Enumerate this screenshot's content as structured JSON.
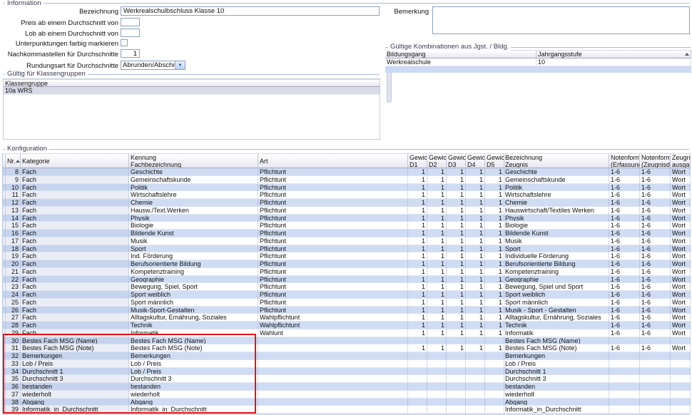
{
  "colors": {
    "row_blue": "#cfdcf4",
    "row_blue_left": "#c7d4ed",
    "selected_gray": "#d9dce8",
    "highlight_red": "#e51414",
    "groupline_blue": "#aebcd8"
  },
  "information": {
    "group_label": "Information",
    "bezeichnung_label": "Bezeichnung",
    "bezeichnung_value": "Werkrealschulbschluss Klasse 10",
    "preis_label": "Preis ab einem Durchschnitt von",
    "preis_value": "",
    "lob_label": "Lob ab einem Durchschnitt von",
    "lob_value": "",
    "unterpunktungen_label": "Unterpunktungen farbig markieren",
    "unterpunktungen_checked": false,
    "nachkommastellen_label": "Nachkommastellen für Durchschnitte",
    "nachkommastellen_value": "1",
    "rundungsart_label": "Rundungsart für Durchschnitte",
    "rundungsart_value": "Abrunden/Abschneiden",
    "bemerkung_label": "Bemerkung",
    "bemerkung_value": ""
  },
  "kombinationen": {
    "group_label": "Gültige Kombinationen aus Jgst. / Bldg.",
    "columns": [
      "Bildungsgang",
      "Jahrgangsstufe"
    ],
    "rows": [
      [
        "Werkrealschule",
        "10"
      ]
    ]
  },
  "klassengruppen": {
    "group_label": "Gültig für Klassengruppen",
    "column": "Klassengruppe",
    "rows": [
      "10a WRS"
    ]
  },
  "konfiguration": {
    "group_label": "Konfiguration",
    "headers": {
      "nr": [
        "Nr."
      ],
      "kategorie": [
        "Kategorie"
      ],
      "kennung": [
        "Kennung",
        "Fachbezeichnung"
      ],
      "art": [
        "Art"
      ],
      "d1": [
        "Gewicht",
        "D1"
      ],
      "d2": [
        "Gewicht",
        "D2"
      ],
      "d3": [
        "Gewicht",
        "D3"
      ],
      "d4": [
        "Gewicht",
        "D4"
      ],
      "d5": [
        "Gewicht",
        "D5"
      ],
      "bezeichnung": [
        "Bezeichnung",
        "Zeugnis"
      ],
      "nf_erfassung": [
        "Notenformat",
        "(Erfassung)"
      ],
      "nf_zeugnisdruck": [
        "Notenformat",
        "(Zeugnisdruck)"
      ],
      "ausgabe": [
        "Zeugnis-",
        "ausgabe"
      ]
    },
    "row_keys": [
      "sel",
      "nr",
      "kategorie",
      "kennung",
      "art",
      "d1",
      "d2",
      "d3",
      "d4",
      "d5",
      "bezeichnung",
      "nf_erfassung",
      "nf_zeugnisdruck",
      "ausgabe"
    ],
    "rows": [
      {
        "nr": "8",
        "kategorie": "Fach",
        "kennung": "Geschichte",
        "art": "Pflichtunt",
        "d1": "1",
        "d2": "1",
        "d3": "1",
        "d4": "1",
        "d5": "1",
        "bezeichnung": "Geschichte",
        "nf_erfassung": "1-6",
        "nf_zeugnisdruck": "1-6",
        "ausgabe": "Wort"
      },
      {
        "nr": "9",
        "kategorie": "Fach",
        "kennung": "Gemeinschaftskunde",
        "art": "Pflichtunt",
        "d1": "1",
        "d2": "1",
        "d3": "1",
        "d4": "1",
        "d5": "1",
        "bezeichnung": "Gemeinschaftskunde",
        "nf_erfassung": "1-6",
        "nf_zeugnisdruck": "1-6",
        "ausgabe": "Wort"
      },
      {
        "nr": "10",
        "kategorie": "Fach",
        "kennung": "Politik",
        "art": "Pflichtunt",
        "d1": "1",
        "d2": "1",
        "d3": "1",
        "d4": "1",
        "d5": "1",
        "bezeichnung": "Politik",
        "nf_erfassung": "1-6",
        "nf_zeugnisdruck": "1-6",
        "ausgabe": "Wort"
      },
      {
        "nr": "11",
        "kategorie": "Fach",
        "kennung": "Wirtschaftslehre",
        "art": "Pflichtunt",
        "d1": "1",
        "d2": "1",
        "d3": "1",
        "d4": "1",
        "d5": "1",
        "bezeichnung": "Wirtschaftslehre",
        "nf_erfassung": "1-6",
        "nf_zeugnisdruck": "1-6",
        "ausgabe": "Wort"
      },
      {
        "nr": "12",
        "kategorie": "Fach",
        "kennung": "Chemie",
        "art": "Pflichtunt",
        "d1": "1",
        "d2": "1",
        "d3": "1",
        "d4": "1",
        "d5": "1",
        "bezeichnung": "Chemie",
        "nf_erfassung": "1-6",
        "nf_zeugnisdruck": "1-6",
        "ausgabe": "Wort"
      },
      {
        "nr": "13",
        "kategorie": "Fach",
        "kennung": "Hausw./Text.Werken",
        "art": "Pflichtunt",
        "d1": "1",
        "d2": "1",
        "d3": "1",
        "d4": "1",
        "d5": "1",
        "bezeichnung": "Hauswirtschaft/Textiles Werken",
        "nf_erfassung": "1-6",
        "nf_zeugnisdruck": "1-6",
        "ausgabe": "Wort"
      },
      {
        "nr": "14",
        "kategorie": "Fach",
        "kennung": "Physik",
        "art": "Pflichtunt",
        "d1": "1",
        "d2": "1",
        "d3": "1",
        "d4": "1",
        "d5": "1",
        "bezeichnung": "Physik",
        "nf_erfassung": "1-6",
        "nf_zeugnisdruck": "1-6",
        "ausgabe": "Wort"
      },
      {
        "nr": "15",
        "kategorie": "Fach",
        "kennung": "Biologie",
        "art": "Pflichtunt",
        "d1": "1",
        "d2": "1",
        "d3": "1",
        "d4": "1",
        "d5": "1",
        "bezeichnung": "Biologie",
        "nf_erfassung": "1-6",
        "nf_zeugnisdruck": "1-6",
        "ausgabe": "Wort"
      },
      {
        "nr": "16",
        "kategorie": "Fach",
        "kennung": "Bildende Kunst",
        "art": "Pflichtunt",
        "d1": "1",
        "d2": "1",
        "d3": "1",
        "d4": "1",
        "d5": "1",
        "bezeichnung": "Bildende Kunst",
        "nf_erfassung": "1-6",
        "nf_zeugnisdruck": "1-6",
        "ausgabe": "Wort"
      },
      {
        "nr": "17",
        "kategorie": "Fach",
        "kennung": "Musik",
        "art": "Pflichtunt",
        "d1": "1",
        "d2": "1",
        "d3": "1",
        "d4": "1",
        "d5": "1",
        "bezeichnung": "Musik",
        "nf_erfassung": "1-6",
        "nf_zeugnisdruck": "1-6",
        "ausgabe": "Wort"
      },
      {
        "nr": "18",
        "kategorie": "Fach",
        "kennung": "Sport",
        "art": "Pflichtunt",
        "d1": "1",
        "d2": "1",
        "d3": "1",
        "d4": "1",
        "d5": "1",
        "bezeichnung": "Sport",
        "nf_erfassung": "1-6",
        "nf_zeugnisdruck": "1-6",
        "ausgabe": "Wort"
      },
      {
        "nr": "19",
        "kategorie": "Fach",
        "kennung": "Ind. Förderung",
        "art": "Pflichtunt",
        "d1": "1",
        "d2": "1",
        "d3": "1",
        "d4": "1",
        "d5": "1",
        "bezeichnung": "Individuelle Förderung",
        "nf_erfassung": "1-6",
        "nf_zeugnisdruck": "1-6",
        "ausgabe": "Wort"
      },
      {
        "nr": "20",
        "kategorie": "Fach",
        "kennung": "Berufsorientierte Bildung",
        "art": "Pflichtunt",
        "d1": "1",
        "d2": "1",
        "d3": "1",
        "d4": "1",
        "d5": "1",
        "bezeichnung": "Berufsorientierte Bildung",
        "nf_erfassung": "1-6",
        "nf_zeugnisdruck": "1-6",
        "ausgabe": "Wort"
      },
      {
        "nr": "21",
        "kategorie": "Fach",
        "kennung": "Kompetenztraining",
        "art": "Pflichtunt",
        "d1": "1",
        "d2": "1",
        "d3": "1",
        "d4": "1",
        "d5": "1",
        "bezeichnung": "Kompetenztraining",
        "nf_erfassung": "1-6",
        "nf_zeugnisdruck": "1-6",
        "ausgabe": "Wort"
      },
      {
        "nr": "22",
        "kategorie": "Fach",
        "kennung": "Geographie",
        "art": "Pflichtunt",
        "d1": "1",
        "d2": "1",
        "d3": "1",
        "d4": "1",
        "d5": "1",
        "bezeichnung": "Geographie",
        "nf_erfassung": "1-6",
        "nf_zeugnisdruck": "1-6",
        "ausgabe": "Wort"
      },
      {
        "nr": "23",
        "kategorie": "Fach",
        "kennung": "Bewegung, Spiel, Sport",
        "art": "Pflichtunt",
        "d1": "1",
        "d2": "1",
        "d3": "1",
        "d4": "1",
        "d5": "1",
        "bezeichnung": "Bewegung, Spiel und Sport",
        "nf_erfassung": "1-6",
        "nf_zeugnisdruck": "1-6",
        "ausgabe": "Wort"
      },
      {
        "nr": "24",
        "kategorie": "Fach",
        "kennung": "Sport weiblich",
        "art": "Pflichtunt",
        "d1": "1",
        "d2": "1",
        "d3": "1",
        "d4": "1",
        "d5": "1",
        "bezeichnung": "Sport weiblich",
        "nf_erfassung": "1-6",
        "nf_zeugnisdruck": "1-6",
        "ausgabe": "Wort"
      },
      {
        "nr": "25",
        "kategorie": "Fach",
        "kennung": "Sport männlich",
        "art": "Pflichtunt",
        "d1": "1",
        "d2": "1",
        "d3": "1",
        "d4": "1",
        "d5": "1",
        "bezeichnung": "Sport männlich",
        "nf_erfassung": "1-6",
        "nf_zeugnisdruck": "1-6",
        "ausgabe": "Wort"
      },
      {
        "nr": "26",
        "kategorie": "Fach",
        "kennung": "Musik-Sport-Gestalten",
        "art": "Pflichtunt",
        "d1": "1",
        "d2": "1",
        "d3": "1",
        "d4": "1",
        "d5": "1",
        "bezeichnung": "Musik - Sport - Gestalten",
        "nf_erfassung": "1-6",
        "nf_zeugnisdruck": "1-6",
        "ausgabe": "Wort"
      },
      {
        "nr": "27",
        "kategorie": "Fach",
        "kennung": "Alltagskultur, Ernährung, Soziales",
        "art": "Wahlpflichtunt",
        "d1": "1",
        "d2": "1",
        "d3": "1",
        "d4": "1",
        "d5": "1",
        "bezeichnung": "Alltagskultur, Ernährung, Soziales",
        "nf_erfassung": "1-6",
        "nf_zeugnisdruck": "1-6",
        "ausgabe": "Wort"
      },
      {
        "nr": "28",
        "kategorie": "Fach",
        "kennung": "Technik",
        "art": "Wahlpflichtunt",
        "d1": "1",
        "d2": "1",
        "d3": "1",
        "d4": "1",
        "d5": "1",
        "bezeichnung": "Technik",
        "nf_erfassung": "1-6",
        "nf_zeugnisdruck": "1-6",
        "ausgabe": "Wort"
      },
      {
        "nr": "29",
        "kategorie": "Fach",
        "kennung": "Informatik",
        "art": "Wahlunt",
        "d1": "1",
        "d2": "1",
        "d3": "1",
        "d4": "1",
        "d5": "1",
        "bezeichnung": "Informatik",
        "nf_erfassung": "1-6",
        "nf_zeugnisdruck": "1-6",
        "ausgabe": "Wort"
      },
      {
        "nr": "30",
        "kategorie": "Bestes Fach MSG (Name)",
        "kennung": "Bestes Fach MSG (Name)",
        "art": "",
        "d1": "",
        "d2": "",
        "d3": "",
        "d4": "",
        "d5": "",
        "bezeichnung": "Bestes Fach MSG (Name)",
        "nf_erfassung": "",
        "nf_zeugnisdruck": "",
        "ausgabe": ""
      },
      {
        "nr": "31",
        "kategorie": "Bestes Fach MSG (Note)",
        "kennung": "Bestes Fach MSG (Note)",
        "art": "",
        "d1": "1",
        "d2": "1",
        "d3": "1",
        "d4": "1",
        "d5": "1",
        "bezeichnung": "Bestes Fach MSG (Note)",
        "nf_erfassung": "1-6",
        "nf_zeugnisdruck": "1-6",
        "ausgabe": "Wort"
      },
      {
        "nr": "32",
        "kategorie": "Bemerkungen",
        "kennung": "Bemerkungen",
        "art": "",
        "d1": "",
        "d2": "",
        "d3": "",
        "d4": "",
        "d5": "",
        "bezeichnung": "Bemerkungen",
        "nf_erfassung": "",
        "nf_zeugnisdruck": "",
        "ausgabe": ""
      },
      {
        "nr": "33",
        "kategorie": "Lob / Preis",
        "kennung": "Lob / Preis",
        "art": "",
        "d1": "",
        "d2": "",
        "d3": "",
        "d4": "",
        "d5": "",
        "bezeichnung": "Lob / Preis",
        "nf_erfassung": "",
        "nf_zeugnisdruck": "",
        "ausgabe": ""
      },
      {
        "nr": "34",
        "kategorie": "Durchschnitt 1",
        "kennung": "Lob / Preis",
        "art": "",
        "d1": "",
        "d2": "",
        "d3": "",
        "d4": "",
        "d5": "",
        "bezeichnung": "Durchschnitt 1",
        "nf_erfassung": "",
        "nf_zeugnisdruck": "",
        "ausgabe": ""
      },
      {
        "nr": "35",
        "kategorie": "Durchschnitt 3",
        "kennung": "Durchschnitt 3",
        "art": "",
        "d1": "",
        "d2": "",
        "d3": "",
        "d4": "",
        "d5": "",
        "bezeichnung": "Durchschnitt 3",
        "nf_erfassung": "",
        "nf_zeugnisdruck": "",
        "ausgabe": ""
      },
      {
        "nr": "36",
        "kategorie": "bestanden",
        "kennung": "bestanden",
        "art": "",
        "d1": "",
        "d2": "",
        "d3": "",
        "d4": "",
        "d5": "",
        "bezeichnung": "bestanden",
        "nf_erfassung": "",
        "nf_zeugnisdruck": "",
        "ausgabe": ""
      },
      {
        "nr": "37",
        "kategorie": "wiederholt",
        "kennung": "wiederholt",
        "art": "",
        "d1": "",
        "d2": "",
        "d3": "",
        "d4": "",
        "d5": "",
        "bezeichnung": "wiederholt",
        "nf_erfassung": "",
        "nf_zeugnisdruck": "",
        "ausgabe": ""
      },
      {
        "nr": "38",
        "kategorie": "Abgang",
        "kennung": "Abgang",
        "art": "",
        "d1": "",
        "d2": "",
        "d3": "",
        "d4": "",
        "d5": "",
        "bezeichnung": "Abgang",
        "nf_erfassung": "",
        "nf_zeugnisdruck": "",
        "ausgabe": ""
      },
      {
        "nr": "39",
        "kategorie": "Informatik_in_Durchschnitt",
        "kennung": "Informatik_in_Durchschnitt",
        "art": "",
        "d1": "",
        "d2": "",
        "d3": "",
        "d4": "",
        "d5": "",
        "bezeichnung": "Informatik_in_Durchschnitt",
        "nf_erfassung": "",
        "nf_zeugnisdruck": "",
        "ausgabe": ""
      }
    ]
  }
}
